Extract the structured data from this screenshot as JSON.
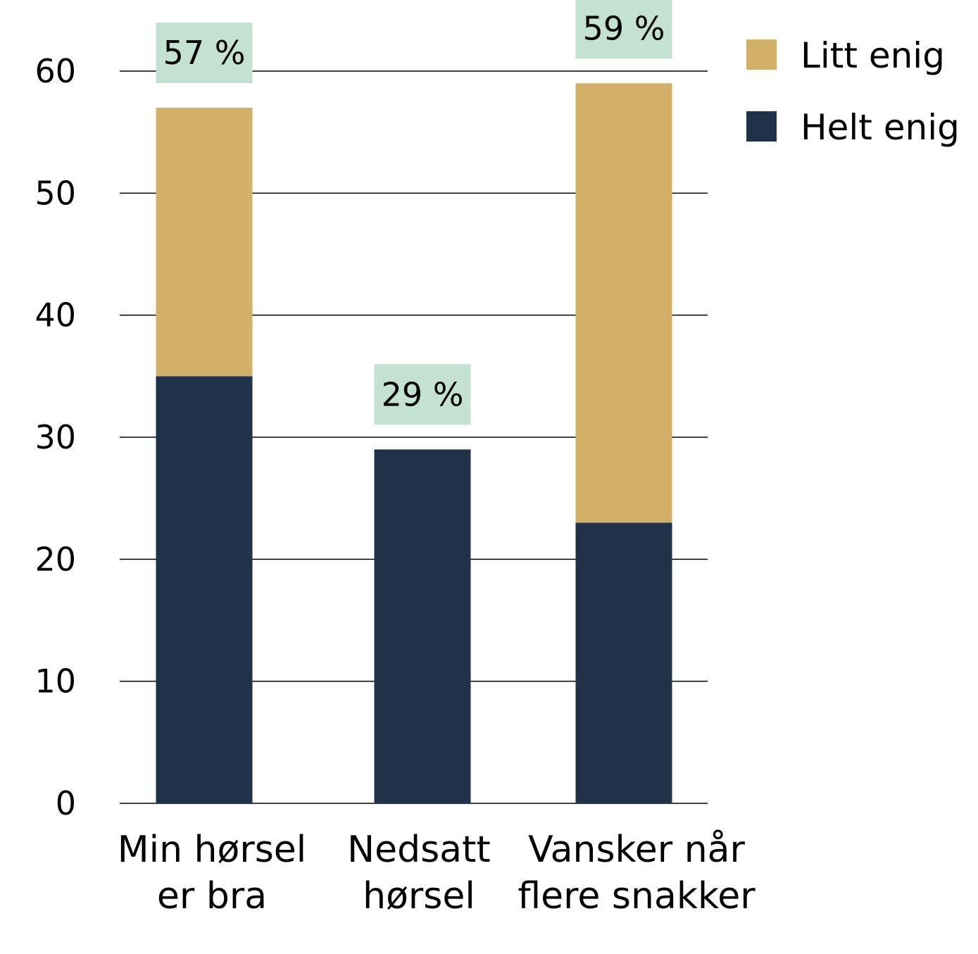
{
  "chart_data": {
    "type": "bar",
    "stacked": true,
    "categories": [
      [
        "Min hørsel",
        "er bra"
      ],
      [
        "Nedsatt",
        "hørsel"
      ],
      [
        "Vansker når",
        "flere snakker"
      ]
    ],
    "series": [
      {
        "name": "Helt enig",
        "values": [
          35,
          29,
          23
        ],
        "color": "#1f324a"
      },
      {
        "name": "Litt enig",
        "values": [
          22,
          0,
          36
        ],
        "color": "#d3b068"
      }
    ],
    "totals": [
      "57 %",
      "29 %",
      "59 %"
    ],
    "total_label_bg": "#c4e2d2",
    "ylim": [
      0,
      60
    ],
    "yticks": [
      0,
      10,
      20,
      30,
      40,
      50,
      60
    ],
    "grid": true,
    "legend": {
      "position": "top-right",
      "order": [
        "Litt enig",
        "Helt enig"
      ]
    }
  }
}
